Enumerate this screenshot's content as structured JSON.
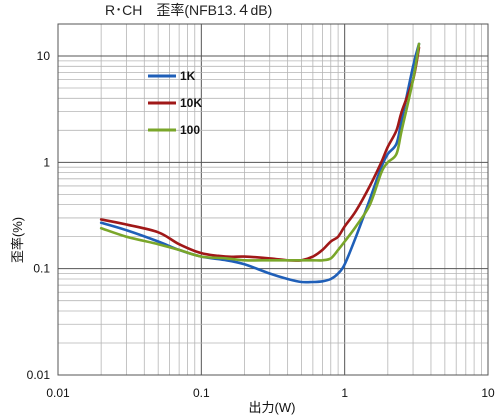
{
  "chart_data": {
    "type": "line",
    "title": "R･CH　歪率(NFB13.４dB)",
    "xlabel": "出力(W)",
    "ylabel": "歪率(%)",
    "x_scale": "log",
    "y_scale": "log",
    "xlim": [
      0.01,
      10
    ],
    "ylim": [
      0.01,
      20
    ],
    "x_ticks": [
      "0.01",
      "0.1",
      "1",
      "10"
    ],
    "y_ticks": [
      "10",
      "1",
      "0.1",
      "0.01"
    ],
    "grid": true,
    "legend_position": "top-left",
    "series": [
      {
        "name": "1K",
        "color": "#1f5fb8",
        "points": [
          [
            0.02,
            0.27
          ],
          [
            0.03,
            0.23
          ],
          [
            0.05,
            0.18
          ],
          [
            0.07,
            0.15
          ],
          [
            0.1,
            0.13
          ],
          [
            0.15,
            0.12
          ],
          [
            0.2,
            0.11
          ],
          [
            0.3,
            0.09
          ],
          [
            0.4,
            0.08
          ],
          [
            0.5,
            0.075
          ],
          [
            0.6,
            0.075
          ],
          [
            0.7,
            0.076
          ],
          [
            0.8,
            0.08
          ],
          [
            0.9,
            0.09
          ],
          [
            1.0,
            0.11
          ],
          [
            1.2,
            0.2
          ],
          [
            1.5,
            0.45
          ],
          [
            1.8,
            0.9
          ],
          [
            2.0,
            1.2
          ],
          [
            2.3,
            1.5
          ],
          [
            2.5,
            2.5
          ],
          [
            3.0,
            8.0
          ],
          [
            3.3,
            13.0
          ]
        ]
      },
      {
        "name": "10K",
        "color": "#a01818",
        "points": [
          [
            0.02,
            0.29
          ],
          [
            0.03,
            0.26
          ],
          [
            0.05,
            0.22
          ],
          [
            0.07,
            0.17
          ],
          [
            0.1,
            0.14
          ],
          [
            0.15,
            0.13
          ],
          [
            0.2,
            0.13
          ],
          [
            0.3,
            0.125
          ],
          [
            0.4,
            0.12
          ],
          [
            0.5,
            0.12
          ],
          [
            0.6,
            0.13
          ],
          [
            0.7,
            0.15
          ],
          [
            0.8,
            0.18
          ],
          [
            0.9,
            0.2
          ],
          [
            1.0,
            0.25
          ],
          [
            1.2,
            0.35
          ],
          [
            1.5,
            0.6
          ],
          [
            1.8,
            1.0
          ],
          [
            2.0,
            1.4
          ],
          [
            2.3,
            2.0
          ],
          [
            2.5,
            3.0
          ],
          [
            3.0,
            6.0
          ],
          [
            3.3,
            12.0
          ]
        ]
      },
      {
        "name": "100",
        "color": "#7aa62a",
        "points": [
          [
            0.02,
            0.24
          ],
          [
            0.03,
            0.2
          ],
          [
            0.05,
            0.17
          ],
          [
            0.07,
            0.15
          ],
          [
            0.1,
            0.13
          ],
          [
            0.15,
            0.125
          ],
          [
            0.2,
            0.12
          ],
          [
            0.3,
            0.12
          ],
          [
            0.4,
            0.12
          ],
          [
            0.5,
            0.12
          ],
          [
            0.6,
            0.12
          ],
          [
            0.7,
            0.12
          ],
          [
            0.8,
            0.125
          ],
          [
            0.9,
            0.15
          ],
          [
            1.0,
            0.18
          ],
          [
            1.2,
            0.25
          ],
          [
            1.5,
            0.4
          ],
          [
            1.8,
            0.8
          ],
          [
            2.0,
            1.0
          ],
          [
            2.3,
            1.2
          ],
          [
            2.5,
            2.0
          ],
          [
            3.0,
            6.0
          ],
          [
            3.3,
            13.0
          ]
        ]
      }
    ]
  }
}
